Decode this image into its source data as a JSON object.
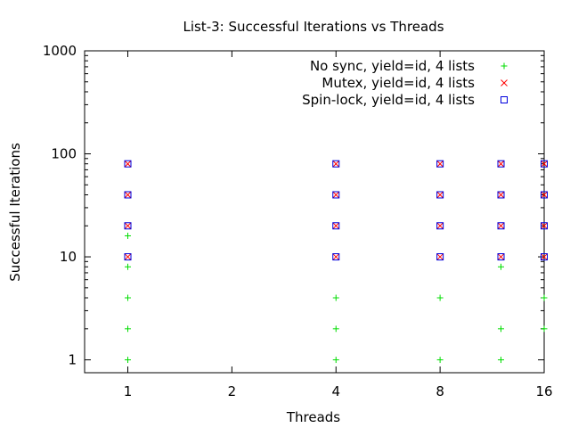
{
  "chart_data": {
    "type": "scatter",
    "title": "List-3: Successful Iterations vs Threads",
    "xlabel": "Threads",
    "ylabel": "Successful Iterations",
    "x_scale": "log2",
    "y_scale": "log10",
    "xlim": [
      0.75,
      16
    ],
    "ylim": [
      0.75,
      1000
    ],
    "x_ticks": [
      1,
      2,
      4,
      8,
      16
    ],
    "x_tick_labels": [
      "1",
      "2",
      "4",
      "8",
      "16"
    ],
    "y_ticks": [
      1,
      10,
      100,
      1000
    ],
    "y_tick_labels": [
      "1",
      "10",
      "100",
      "1000"
    ],
    "grid": false,
    "legend_position": "top-right",
    "series": [
      {
        "name": "No sync, yield=id, 4 lists",
        "marker": "plus",
        "color": "#00dd00",
        "points": [
          {
            "x": 1,
            "y": 1
          },
          {
            "x": 1,
            "y": 2
          },
          {
            "x": 1,
            "y": 4
          },
          {
            "x": 1,
            "y": 8
          },
          {
            "x": 1,
            "y": 16
          },
          {
            "x": 4,
            "y": 1
          },
          {
            "x": 4,
            "y": 2
          },
          {
            "x": 4,
            "y": 4
          },
          {
            "x": 8,
            "y": 1
          },
          {
            "x": 8,
            "y": 4
          },
          {
            "x": 12,
            "y": 1
          },
          {
            "x": 12,
            "y": 2
          },
          {
            "x": 12,
            "y": 8
          },
          {
            "x": 16,
            "y": 2
          },
          {
            "x": 16,
            "y": 4
          }
        ]
      },
      {
        "name": "Mutex, yield=id, 4 lists",
        "marker": "cross",
        "color": "#ff0000",
        "points": [
          {
            "x": 1,
            "y": 10
          },
          {
            "x": 1,
            "y": 20
          },
          {
            "x": 1,
            "y": 40
          },
          {
            "x": 1,
            "y": 80
          },
          {
            "x": 4,
            "y": 10
          },
          {
            "x": 4,
            "y": 20
          },
          {
            "x": 4,
            "y": 40
          },
          {
            "x": 4,
            "y": 80
          },
          {
            "x": 8,
            "y": 10
          },
          {
            "x": 8,
            "y": 20
          },
          {
            "x": 8,
            "y": 40
          },
          {
            "x": 8,
            "y": 80
          },
          {
            "x": 12,
            "y": 10
          },
          {
            "x": 12,
            "y": 20
          },
          {
            "x": 12,
            "y": 40
          },
          {
            "x": 12,
            "y": 80
          },
          {
            "x": 16,
            "y": 10
          },
          {
            "x": 16,
            "y": 20
          },
          {
            "x": 16,
            "y": 40
          },
          {
            "x": 16,
            "y": 80
          }
        ]
      },
      {
        "name": "Spin-lock, yield=id, 4 lists",
        "marker": "square",
        "color": "#0000dd",
        "points": [
          {
            "x": 1,
            "y": 10
          },
          {
            "x": 1,
            "y": 20
          },
          {
            "x": 1,
            "y": 40
          },
          {
            "x": 1,
            "y": 80
          },
          {
            "x": 4,
            "y": 10
          },
          {
            "x": 4,
            "y": 20
          },
          {
            "x": 4,
            "y": 40
          },
          {
            "x": 4,
            "y": 80
          },
          {
            "x": 8,
            "y": 10
          },
          {
            "x": 8,
            "y": 20
          },
          {
            "x": 8,
            "y": 40
          },
          {
            "x": 8,
            "y": 80
          },
          {
            "x": 12,
            "y": 10
          },
          {
            "x": 12,
            "y": 20
          },
          {
            "x": 12,
            "y": 40
          },
          {
            "x": 12,
            "y": 80
          },
          {
            "x": 16,
            "y": 10
          },
          {
            "x": 16,
            "y": 20
          },
          {
            "x": 16,
            "y": 40
          },
          {
            "x": 16,
            "y": 80
          }
        ]
      }
    ]
  }
}
